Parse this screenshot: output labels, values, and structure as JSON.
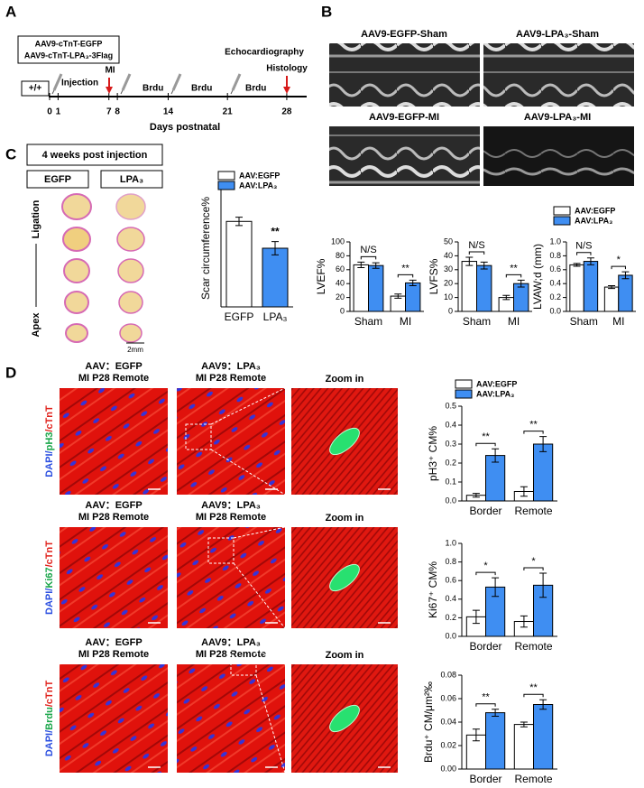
{
  "panels": [
    "A",
    "B",
    "C",
    "D"
  ],
  "timeline": {
    "vectors": [
      "AAV9-cTnT-EGFP",
      "AAV9-cTnT-LPA₃-3Flag"
    ],
    "genotype": "+/+",
    "events": [
      "Injection",
      "MI",
      "Brdu",
      "Brdu",
      "Brdu",
      "Echocardiography",
      "Histology"
    ],
    "days": [
      0,
      1,
      7,
      8,
      14,
      21,
      28
    ],
    "xlabel": "Days postnatal"
  },
  "echo": {
    "titles": [
      "AAV9-EGFP-Sham",
      "AAV9-LPA₃-Sham",
      "AAV9-EGFP-MI",
      "AAV9-LPA₃-MI"
    ]
  },
  "histology": {
    "heading": "4 weeks post injection",
    "groups": [
      "EGFP",
      "LPA₃"
    ],
    "ends": [
      "Ligation",
      "Apex"
    ],
    "scale": "2mm"
  },
  "micrographs": {
    "rows": [
      {
        "stain": [
          "DAPI/",
          "pH3",
          "/cTnT"
        ],
        "titles": [
          [
            "AAV：EGFP",
            "MI  P28 Remote"
          ],
          [
            "AAV9：LPA₃",
            "MI  P28 Remote"
          ],
          [
            "Zoom in"
          ]
        ]
      },
      {
        "stain": [
          "DAPI/",
          "Ki67",
          "/cTnT"
        ],
        "titles": [
          [
            "AAV：EGFP",
            "MI  P28 Remote"
          ],
          [
            "AAV9：LPA₃",
            "MI  P28 Remote"
          ],
          [
            "Zoom in"
          ]
        ]
      },
      {
        "stain": [
          "DAPI/",
          "Brdu",
          "/cTnT"
        ],
        "titles": [
          [
            "AAV：EGFP",
            "MI  P28 Remote"
          ],
          [
            "AAV9：LPA₃",
            "MI  P28 Remote"
          ],
          [
            "Zoom in"
          ]
        ]
      }
    ]
  },
  "chart_data": [
    {
      "type": "bar",
      "ylabel": "Scar circumference%",
      "categories": [
        "EGFP",
        "LPA₃"
      ],
      "values": [
        51,
        35
      ],
      "errors": [
        2.5,
        4
      ],
      "colors": [
        "#ffffff",
        "#3f8ef2"
      ],
      "legend_labels": [
        "AAV:EGFP",
        "AAV:LPA₃"
      ],
      "ylim": [
        0,
        70
      ],
      "annotation": "**"
    },
    {
      "type": "grouped_bar",
      "ylabel": "LVEF%",
      "categories": [
        "Sham",
        "MI"
      ],
      "series": [
        {
          "color": "#ffffff",
          "values": [
            67,
            22
          ],
          "errors": [
            4,
            3
          ]
        },
        {
          "color": "#3f8ef2",
          "values": [
            66,
            41
          ],
          "errors": [
            4,
            4
          ]
        }
      ],
      "ylim": [
        0,
        100
      ],
      "yticks": [
        0,
        20,
        40,
        60,
        80,
        100
      ],
      "annotations": [
        "N/S",
        "**"
      ]
    },
    {
      "type": "grouped_bar",
      "ylabel": "LVFS%",
      "categories": [
        "Sham",
        "MI"
      ],
      "series": [
        {
          "color": "#ffffff",
          "values": [
            36,
            10
          ],
          "errors": [
            3,
            1.5
          ]
        },
        {
          "color": "#3f8ef2",
          "values": [
            33,
            20
          ],
          "errors": [
            2.5,
            2.5
          ]
        }
      ],
      "ylim": [
        0,
        50
      ],
      "yticks": [
        0,
        10,
        20,
        30,
        40,
        50
      ],
      "annotations": [
        "N/S",
        "**"
      ]
    },
    {
      "type": "grouped_bar",
      "ylabel": "LVAW;d (mm)",
      "categories": [
        "Sham",
        "MI"
      ],
      "series": [
        {
          "name": "AAV:EGFP",
          "color": "#ffffff",
          "values": [
            0.67,
            0.35
          ],
          "errors": [
            0.02,
            0.02
          ]
        },
        {
          "name": "AAV:LPA₃",
          "color": "#3f8ef2",
          "values": [
            0.72,
            0.52
          ],
          "errors": [
            0.05,
            0.05
          ]
        }
      ],
      "ylim": [
        0,
        1.0
      ],
      "yticks": [
        {
          "value": 0,
          "label": "0.0"
        },
        0.2,
        0.4,
        0.6,
        0.8,
        {
          "value": 1,
          "label": "1.0"
        }
      ],
      "annotations": [
        "N/S",
        "*"
      ],
      "legend": "top"
    },
    {
      "type": "grouped_bar",
      "ylabel": "pH3⁺ CM%",
      "categories": [
        "Border",
        "Remote"
      ],
      "series": [
        {
          "name": "AAV:EGFP",
          "color": "#ffffff",
          "values": [
            0.03,
            0.05
          ],
          "errors": [
            0.01,
            0.025
          ]
        },
        {
          "name": "AAV:LPA₃",
          "color": "#3f8ef2",
          "values": [
            0.24,
            0.3
          ],
          "errors": [
            0.035,
            0.04
          ]
        }
      ],
      "ylim": [
        0,
        0.5
      ],
      "yticks": [
        {
          "value": 0,
          "label": "0.0"
        },
        0.1,
        0.2,
        0.3,
        0.4,
        0.5
      ],
      "annotations": [
        "**",
        "**"
      ],
      "legend": "top"
    },
    {
      "type": "grouped_bar",
      "ylabel": "Ki67⁺ CM%",
      "categories": [
        "Border",
        "Remote"
      ],
      "series": [
        {
          "color": "#ffffff",
          "values": [
            0.21,
            0.16
          ],
          "errors": [
            0.07,
            0.06
          ]
        },
        {
          "color": "#3f8ef2",
          "values": [
            0.53,
            0.55
          ],
          "errors": [
            0.1,
            0.13
          ]
        }
      ],
      "ylim": [
        0,
        1.0
      ],
      "yticks": [
        {
          "value": 0,
          "label": "0.0"
        },
        0.2,
        0.4,
        0.6,
        0.8,
        {
          "value": 1,
          "label": "1.0"
        }
      ],
      "annotations": [
        "*",
        "*"
      ]
    },
    {
      "type": "grouped_bar",
      "ylabel": "Brdu⁺ CM/μm²‰",
      "categories": [
        "Border",
        "Remote"
      ],
      "series": [
        {
          "color": "#ffffff",
          "values": [
            0.029,
            0.038
          ],
          "errors": [
            0.005,
            0.002
          ]
        },
        {
          "color": "#3f8ef2",
          "values": [
            0.048,
            0.055
          ],
          "errors": [
            0.003,
            0.004
          ]
        }
      ],
      "ylim": [
        0,
        0.08
      ],
      "yticks": [
        {
          "value": 0,
          "label": "0.00"
        },
        {
          "value": 0.02,
          "label": "0.02"
        },
        {
          "value": 0.04,
          "label": "0.04"
        },
        {
          "value": 0.06,
          "label": "0.06"
        },
        {
          "value": 0.08,
          "label": "0.08"
        }
      ],
      "annotations": [
        "**",
        "**"
      ]
    }
  ]
}
